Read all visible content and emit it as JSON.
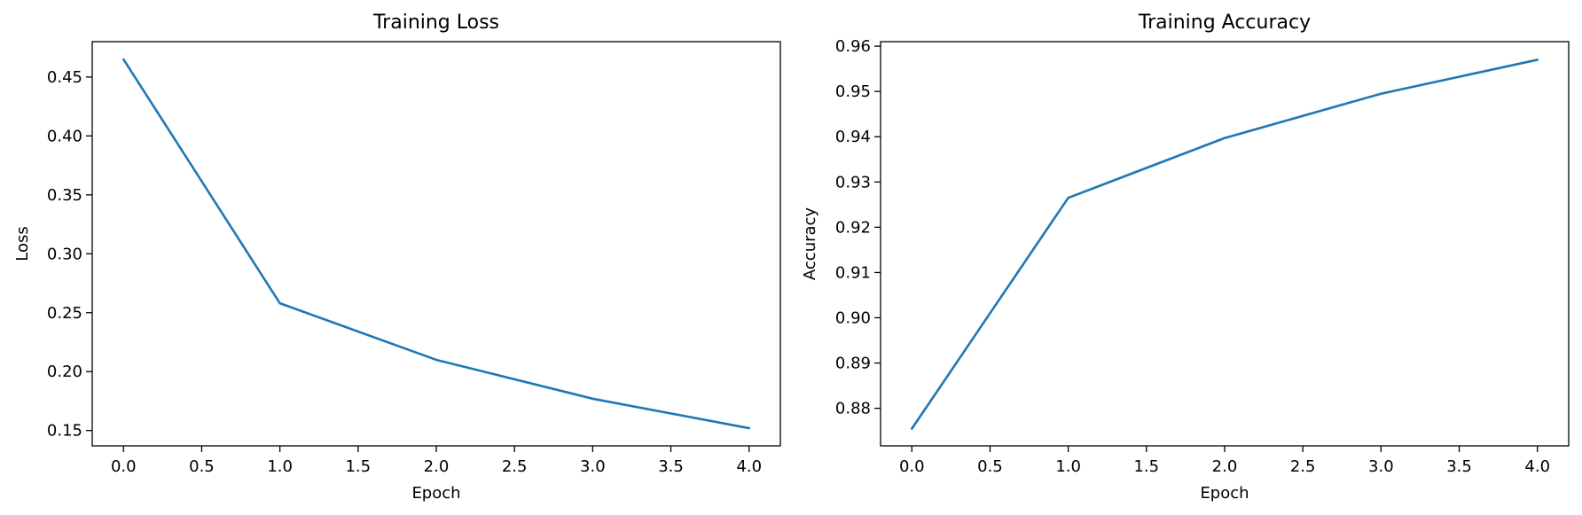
{
  "chart_data": [
    {
      "type": "line",
      "title": "Training Loss",
      "xlabel": "Epoch",
      "ylabel": "Loss",
      "xlim": [
        -0.2,
        4.2
      ],
      "ylim": [
        0.137,
        0.48
      ],
      "xticks": [
        0.0,
        0.5,
        1.0,
        1.5,
        2.0,
        2.5,
        3.0,
        3.5,
        4.0
      ],
      "xtick_labels": [
        "0.0",
        "0.5",
        "1.0",
        "1.5",
        "2.0",
        "2.5",
        "3.0",
        "3.5",
        "4.0"
      ],
      "yticks": [
        0.15,
        0.2,
        0.25,
        0.3,
        0.35,
        0.4,
        0.45
      ],
      "ytick_labels": [
        "0.15",
        "0.20",
        "0.25",
        "0.30",
        "0.35",
        "0.40",
        "0.45"
      ],
      "grid": false,
      "series": [
        {
          "x": [
            0,
            1,
            2,
            3,
            4
          ],
          "y": [
            0.465,
            0.258,
            0.21,
            0.177,
            0.152
          ],
          "color": "#1f77b4"
        }
      ]
    },
    {
      "type": "line",
      "title": "Training Accuracy",
      "xlabel": "Epoch",
      "ylabel": "Accuracy",
      "xlim": [
        -0.2,
        4.2
      ],
      "ylim": [
        0.8717,
        0.961
      ],
      "xticks": [
        0.0,
        0.5,
        1.0,
        1.5,
        2.0,
        2.5,
        3.0,
        3.5,
        4.0
      ],
      "xtick_labels": [
        "0.0",
        "0.5",
        "1.0",
        "1.5",
        "2.0",
        "2.5",
        "3.0",
        "3.5",
        "4.0"
      ],
      "yticks": [
        0.88,
        0.89,
        0.9,
        0.91,
        0.92,
        0.93,
        0.94,
        0.95,
        0.96
      ],
      "ytick_labels": [
        "0.88",
        "0.89",
        "0.90",
        "0.91",
        "0.92",
        "0.93",
        "0.94",
        "0.95",
        "0.96"
      ],
      "grid": false,
      "series": [
        {
          "x": [
            0,
            1,
            2,
            3,
            4
          ],
          "y": [
            0.8755,
            0.9265,
            0.9397,
            0.9495,
            0.957
          ],
          "color": "#1f77b4"
        }
      ]
    }
  ]
}
